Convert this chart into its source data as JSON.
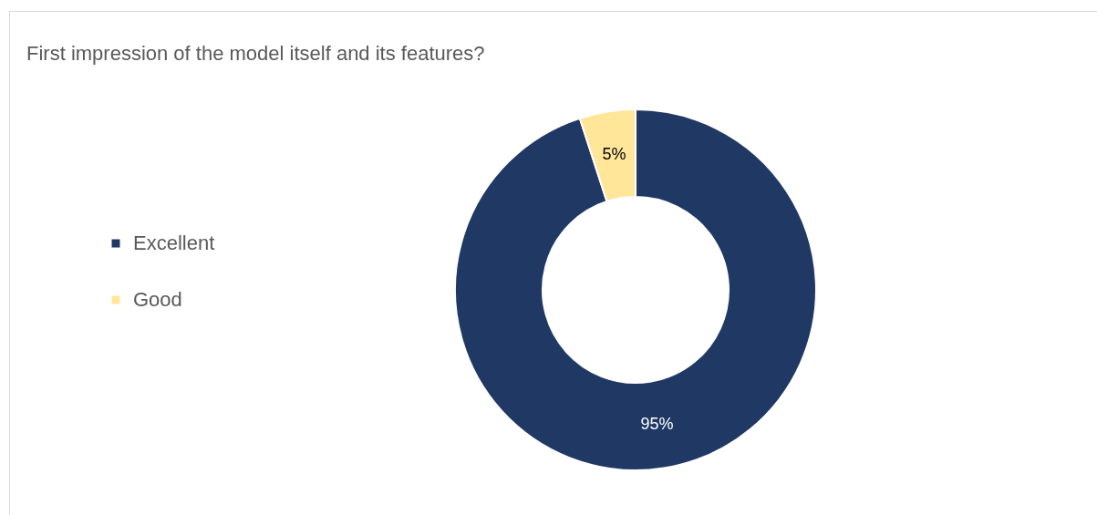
{
  "chart_data": {
    "type": "donut",
    "title": "First impression of the model itself and its features?",
    "categories": [
      "Excellent",
      "Good"
    ],
    "values": [
      95,
      5
    ],
    "colors": [
      "#203864",
      "#ffe699"
    ],
    "value_labels": [
      "95%",
      "5%"
    ],
    "legend": "left"
  }
}
